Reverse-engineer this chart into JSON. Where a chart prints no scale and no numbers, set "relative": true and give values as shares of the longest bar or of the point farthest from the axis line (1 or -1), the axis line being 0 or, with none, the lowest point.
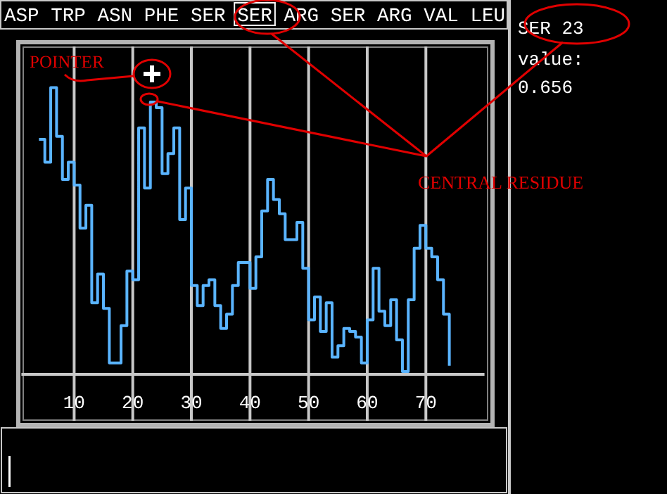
{
  "chart_data": {
    "type": "step",
    "relative": true,
    "xlim": [
      1,
      80
    ],
    "xticks": [
      10,
      20,
      30,
      40,
      50,
      60,
      70
    ],
    "grid": "x",
    "tick_labels": "x",
    "x": [
      4,
      5,
      6,
      7,
      8,
      9,
      10,
      11,
      12,
      13,
      14,
      15,
      16,
      17,
      18,
      19,
      20,
      21,
      22,
      23,
      24,
      25,
      26,
      27,
      28,
      29,
      30,
      31,
      32,
      33,
      34,
      35,
      36,
      37,
      38,
      39,
      40,
      41,
      42,
      43,
      44,
      45,
      46,
      47,
      48,
      49,
      50,
      51,
      52,
      53,
      54,
      55,
      56,
      57,
      58,
      59,
      60,
      61,
      62,
      63,
      64,
      65,
      66,
      67,
      68,
      69,
      70,
      71,
      72,
      73,
      74
    ],
    "series": [
      {
        "color": "#5ab4ff",
        "values": [
          0.82,
          0.74,
          1,
          0.83,
          0.68,
          0.74,
          0.66,
          0.51,
          0.59,
          0.25,
          0.35,
          0.23,
          0.04,
          0.04,
          0.17,
          0.36,
          0.33,
          0.86,
          0.65,
          0.95,
          0.93,
          0.7,
          0.77,
          0.86,
          0.54,
          0.65,
          0.31,
          0.24,
          0.31,
          0.33,
          0.24,
          0.16,
          0.21,
          0.31,
          0.39,
          0.39,
          0.3,
          0.41,
          0.57,
          0.68,
          0.61,
          0.56,
          0.47,
          0.47,
          0.53,
          0.37,
          0.19,
          0.27,
          0.15,
          0.25,
          0.06,
          0.1,
          0.16,
          0.15,
          0.13,
          0.04,
          0.19,
          0.37,
          0.22,
          0.17,
          0.26,
          0.12,
          0.01,
          0.26,
          0.44,
          0.52,
          0.44,
          0.41,
          0.33,
          0.21,
          0.03
        ]
      }
    ],
    "annotations": [
      "ASP TRP ASN PHE SER SER ARG SER ARG VAL LEU",
      "SER 23",
      "value:",
      "0.656",
      "POINTER",
      "CENTRAL RESIDUE"
    ]
  }
}
